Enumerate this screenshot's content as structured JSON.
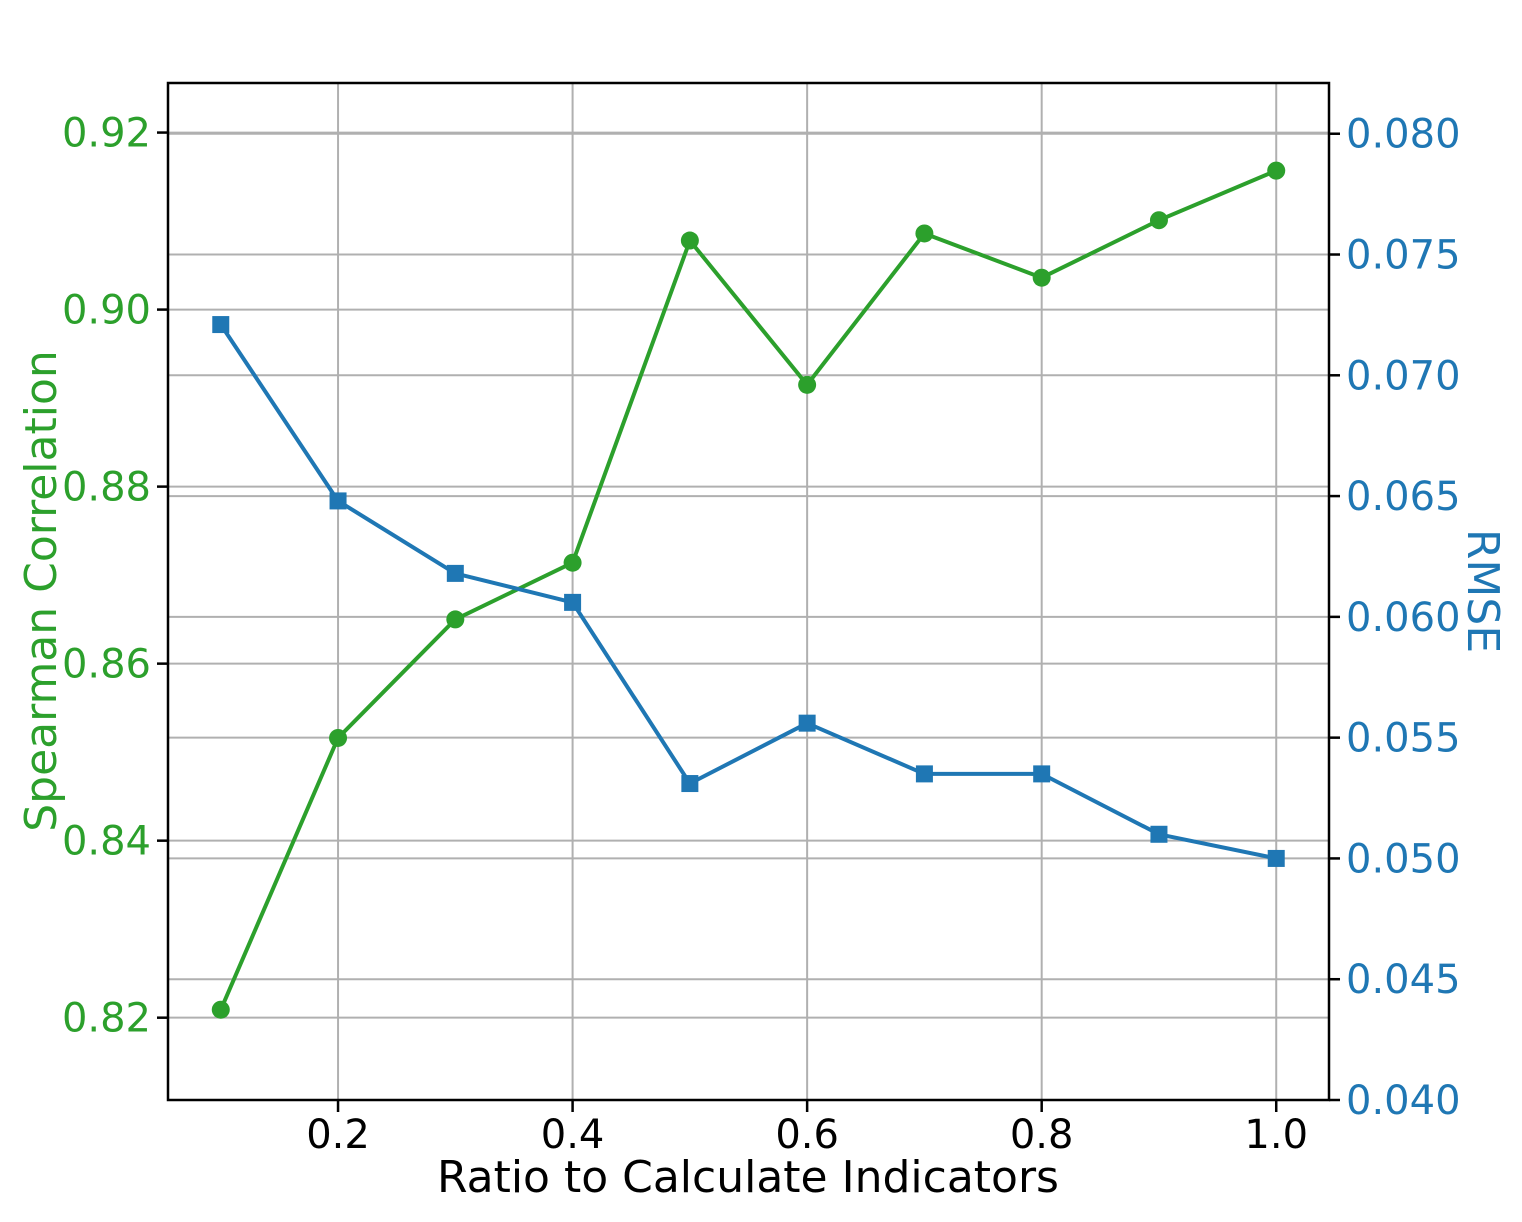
{
  "chart_data": {
    "type": "line",
    "x": [
      0.1,
      0.2,
      0.3,
      0.4,
      0.5,
      0.6,
      0.7,
      0.8,
      0.9,
      1.0
    ],
    "xlabel": "Ratio to Calculate Indicators",
    "x_ticks": [
      "0.2",
      "0.4",
      "0.6",
      "0.8",
      "1.0"
    ],
    "x_tick_values": [
      0.2,
      0.4,
      0.6,
      0.8,
      1.0
    ],
    "xlim": [
      0.055,
      1.045
    ],
    "grid": true,
    "legend": "none",
    "series": [
      {
        "name": "Spearman Correlation",
        "axis": "left",
        "color": "#2ca02c",
        "marker": "circle",
        "values": [
          0.8209,
          0.8516,
          0.865,
          0.8714,
          0.9078,
          0.8915,
          0.9086,
          0.9036,
          0.9101,
          0.9157
        ]
      },
      {
        "name": "RMSE",
        "axis": "right",
        "color": "#1f77b4",
        "marker": "square",
        "values": [
          0.0721,
          0.0648,
          0.0618,
          0.0606,
          0.0531,
          0.0556,
          0.0535,
          0.0535,
          0.051,
          0.05
        ]
      }
    ],
    "left_axis": {
      "label": "Spearman Correlation",
      "color": "#2ca02c",
      "ticks": [
        "0.82",
        "0.84",
        "0.86",
        "0.88",
        "0.90",
        "0.92"
      ],
      "tick_values": [
        0.82,
        0.84,
        0.86,
        0.88,
        0.9,
        0.92
      ],
      "lim": [
        0.8107,
        0.9256
      ]
    },
    "right_axis": {
      "label": "RMSE",
      "color": "#1f77b4",
      "ticks": [
        "0.040",
        "0.045",
        "0.050",
        "0.055",
        "0.060",
        "0.065",
        "0.070",
        "0.075",
        "0.080"
      ],
      "tick_values": [
        0.04,
        0.045,
        0.05,
        0.055,
        0.06,
        0.065,
        0.07,
        0.075,
        0.08
      ],
      "lim": [
        0.04,
        0.0821
      ]
    },
    "styles": {
      "grid_color": "#b0b0b0",
      "spine_color": "#000000",
      "x_tick_color": "#000000",
      "background": "#ffffff"
    }
  }
}
